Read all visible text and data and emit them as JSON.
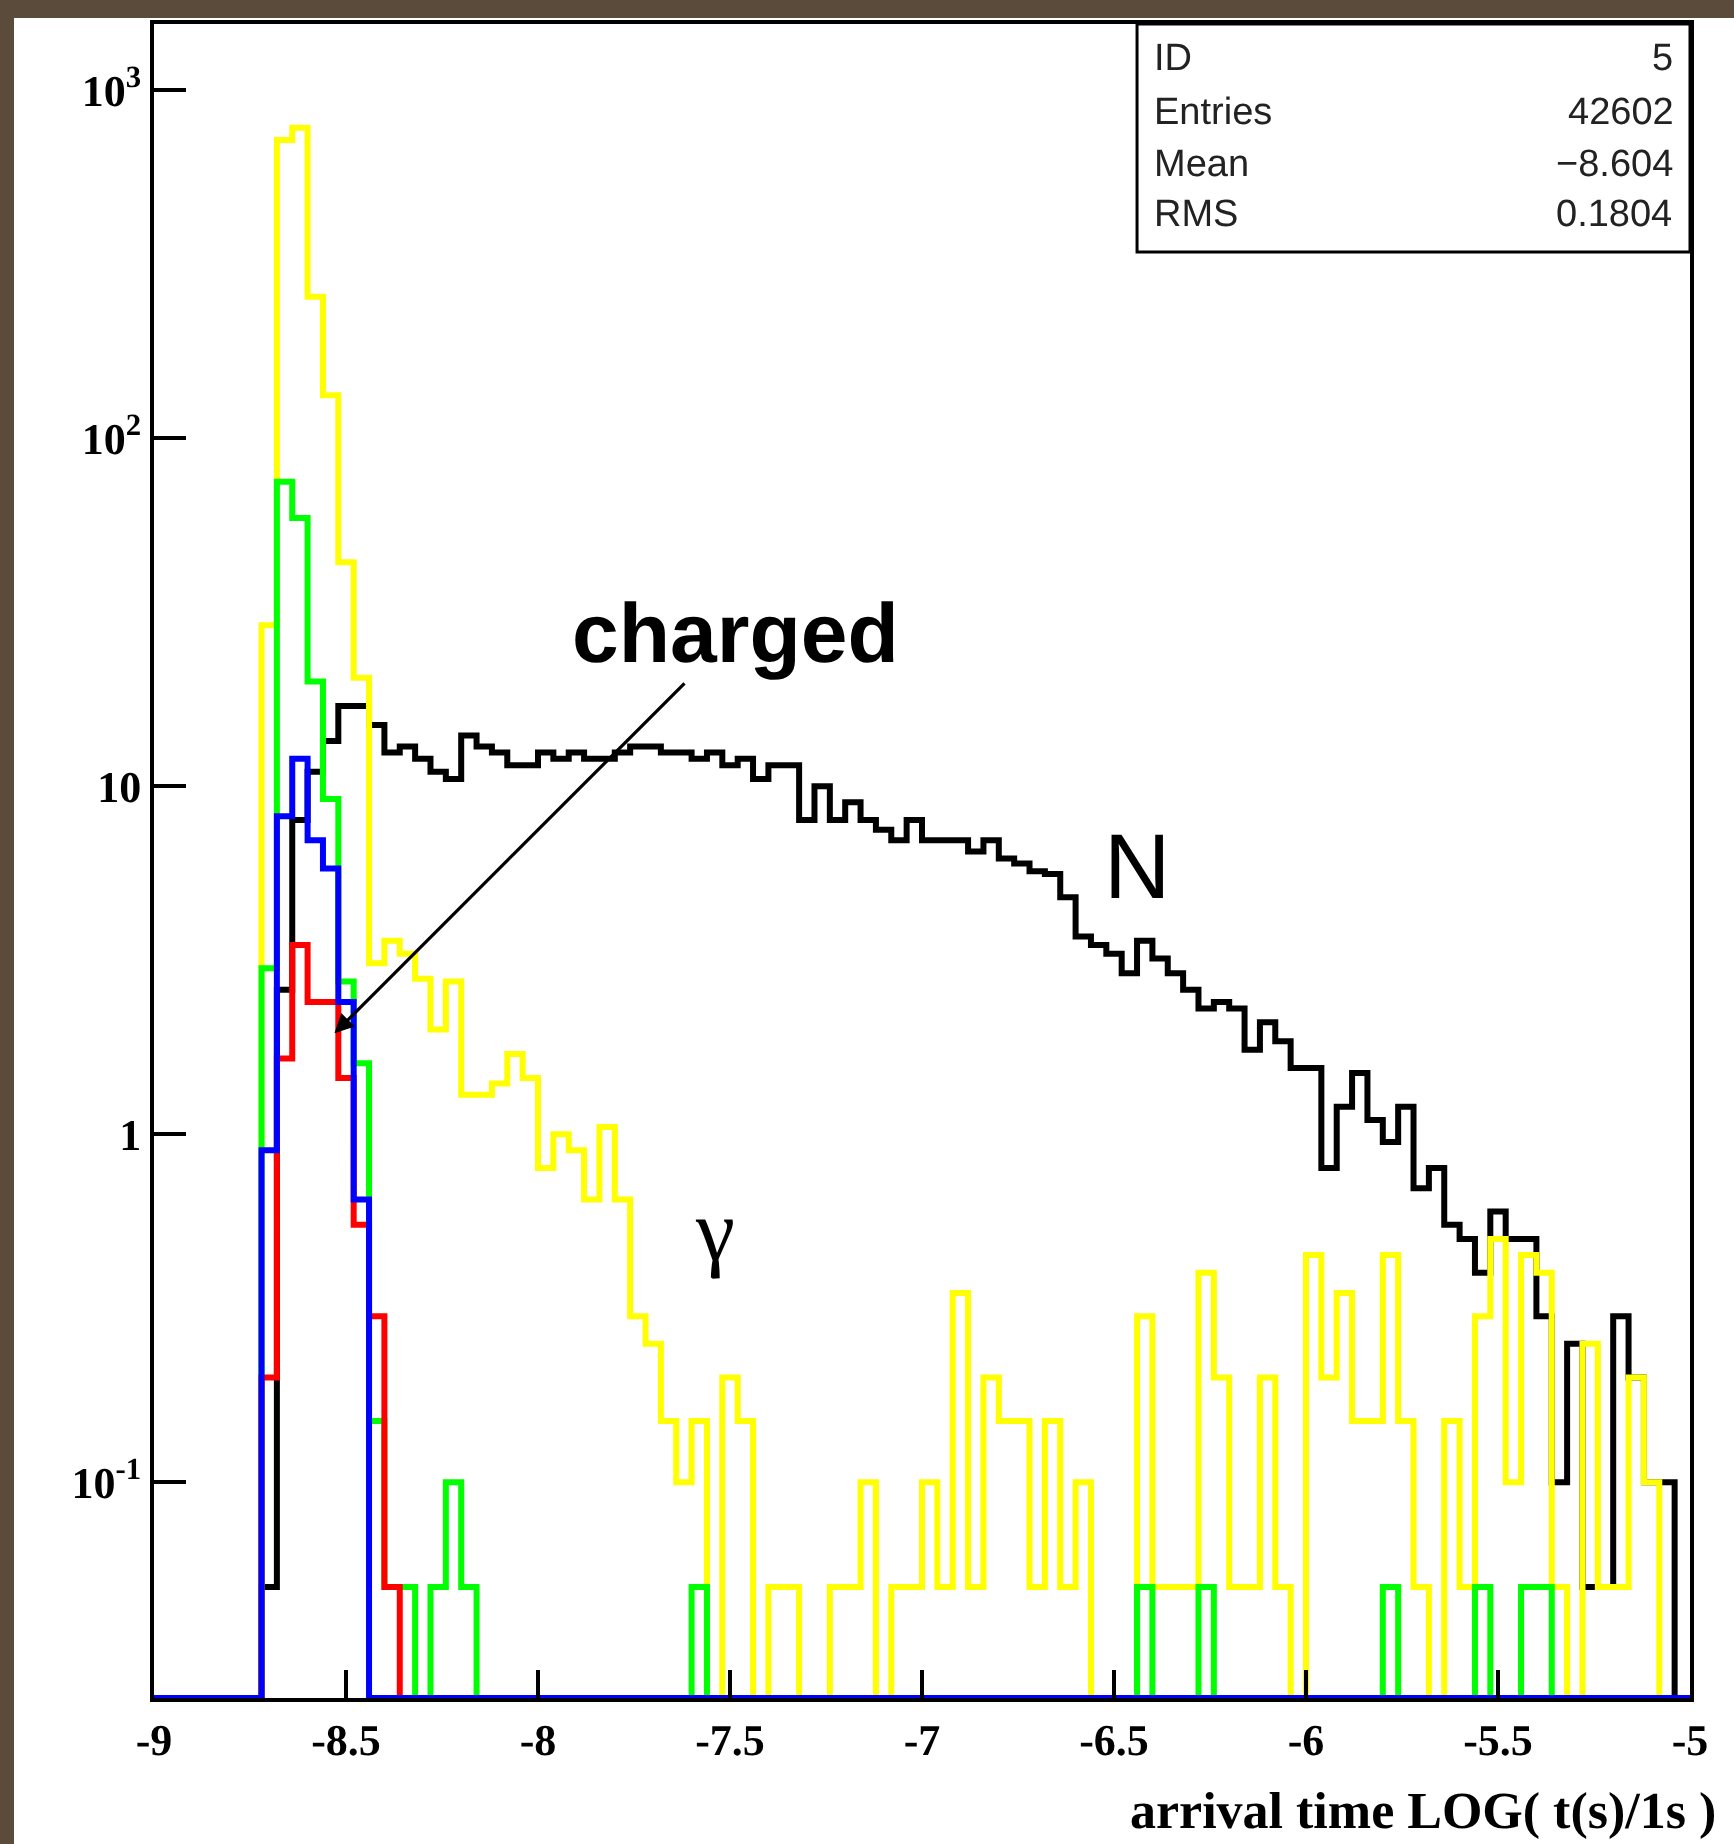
{
  "chart_data": {
    "type": "histogram",
    "xlabel": "arrival time LOG( t(s)/1s )",
    "bins": [
      -9,
      -8.96,
      -8.92,
      -8.88,
      -8.84,
      -8.8,
      -8.76,
      -8.72,
      -8.68,
      -8.64,
      -8.6,
      -8.56,
      -8.52,
      -8.48,
      -8.44,
      -8.4,
      -8.36,
      -8.32,
      -8.28,
      -8.24,
      -8.2,
      -8.16,
      -8.12,
      -8.08,
      -8.04,
      -8,
      -7.96,
      -7.92,
      -7.88,
      -7.84,
      -7.8,
      -7.76,
      -7.72,
      -7.68,
      -7.64,
      -7.6,
      -7.56,
      -7.52,
      -7.48,
      -7.44,
      -7.4,
      -7.36,
      -7.32,
      -7.28,
      -7.24,
      -7.2,
      -7.16,
      -7.12,
      -7.08,
      -7.04,
      -7,
      -6.96,
      -6.92,
      -6.88,
      -6.84,
      -6.8,
      -6.76,
      -6.72,
      -6.68,
      -6.64,
      -6.6,
      -6.56,
      -6.52,
      -6.48,
      -6.44,
      -6.4,
      -6.36,
      -6.32,
      -6.28,
      -6.24,
      -6.2,
      -6.16,
      -6.12,
      -6.08,
      -6.04,
      -6,
      -5.96,
      -5.92,
      -5.88,
      -5.84,
      -5.8,
      -5.76,
      -5.72,
      -5.68,
      -5.64,
      -5.6,
      -5.56,
      -5.52,
      -5.48,
      -5.44,
      -5.4,
      -5.36,
      -5.32,
      -5.28,
      -5.24,
      -5.2,
      -5.16,
      -5.12,
      -5.08,
      -5.04,
      -5
    ],
    "series": [
      {
        "name": "N",
        "color": "#000000",
        "values": [
          null,
          null,
          null,
          null,
          null,
          null,
          null,
          0.05,
          2.6,
          8,
          11,
          13.5,
          17,
          17,
          15,
          12.5,
          13,
          12,
          11,
          10.5,
          14,
          13,
          12.5,
          11.5,
          11.5,
          12.5,
          12,
          12.5,
          12,
          12,
          12.5,
          13,
          13,
          12.5,
          12.5,
          12,
          12.5,
          11.5,
          12,
          10.5,
          11.5,
          11.5,
          8,
          10,
          8,
          9,
          8,
          7.5,
          7,
          8,
          7,
          7,
          7,
          6.5,
          7,
          6.2,
          6,
          5.7,
          5.6,
          4.8,
          3.7,
          3.5,
          3.3,
          2.9,
          3.6,
          3.2,
          2.9,
          2.6,
          2.3,
          2.4,
          2.3,
          1.75,
          2.1,
          1.85,
          1.55,
          1.55,
          0.8,
          1.2,
          1.5,
          1.1,
          0.95,
          1.2,
          0.7,
          0.8,
          0.55,
          0.5,
          0.4,
          0.6,
          0.5,
          0.5,
          0.3,
          0.1,
          0.25,
          0.05,
          0.05,
          0.3,
          0.2,
          0.1,
          0.1,
          null
        ]
      },
      {
        "name": "γ",
        "color": "#ffff00",
        "values": [
          null,
          null,
          null,
          null,
          null,
          null,
          null,
          29,
          720,
          780,
          255,
          133,
          44,
          20.5,
          3.1,
          3.6,
          3.3,
          2.8,
          2,
          2.75,
          1.3,
          1.3,
          1.4,
          1.7,
          1.45,
          0.8,
          1,
          0.9,
          0.65,
          1.05,
          0.65,
          0.3,
          0.25,
          0.15,
          0.1,
          0.15,
          null,
          0.2,
          0.15,
          null,
          0.05,
          0.05,
          null,
          null,
          0.05,
          0.05,
          0.1,
          null,
          0.05,
          0.05,
          0.1,
          0.05,
          0.35,
          0.05,
          0.2,
          0.15,
          0.15,
          0.05,
          0.15,
          0.05,
          0.1,
          null,
          null,
          null,
          0.3,
          0.05,
          0.05,
          0.05,
          0.4,
          0.2,
          0.05,
          0.05,
          0.2,
          0.05,
          null,
          0.45,
          0.2,
          0.35,
          0.15,
          0.15,
          0.45,
          0.15,
          0.05,
          null,
          0.15,
          0.05,
          0.3,
          0.5,
          0.1,
          0.45,
          0.4,
          0.05,
          null,
          0.25,
          0.05,
          0.05,
          0.2,
          0.1,
          null,
          null
        ]
      },
      {
        "color": "#00ff00",
        "values": [
          null,
          null,
          null,
          null,
          null,
          null,
          null,
          3,
          75,
          59,
          20,
          9.2,
          2.75,
          1.6,
          0.15,
          0.05,
          0.05,
          null,
          0.05,
          0.1,
          0.05,
          null,
          null,
          null,
          null,
          null,
          null,
          null,
          null,
          null,
          null,
          null,
          null,
          null,
          null,
          0.05,
          null,
          null,
          null,
          null,
          null,
          null,
          null,
          null,
          null,
          null,
          null,
          null,
          null,
          null,
          null,
          null,
          null,
          null,
          null,
          null,
          null,
          null,
          null,
          null,
          null,
          null,
          null,
          null,
          0.05,
          null,
          null,
          null,
          0.05,
          null,
          null,
          null,
          null,
          null,
          null,
          null,
          null,
          null,
          null,
          null,
          0.05,
          null,
          null,
          null,
          null,
          null,
          0.05,
          null,
          null,
          0.05,
          0.05,
          null,
          null,
          null,
          null,
          null,
          null,
          null,
          null,
          null
        ]
      },
      {
        "color": "#ff0000",
        "values": [
          null,
          null,
          null,
          null,
          null,
          null,
          null,
          0.2,
          1.65,
          3.5,
          2.4,
          2.4,
          1.45,
          0.55,
          0.3,
          0.05,
          null,
          null,
          null,
          null,
          null,
          null,
          null,
          null,
          null,
          null,
          null,
          null,
          null,
          null,
          null,
          null,
          null,
          null,
          null,
          null,
          null,
          null,
          null,
          null,
          null,
          null,
          null,
          null,
          null,
          null,
          null,
          null,
          null,
          null,
          null,
          null,
          null,
          null,
          null,
          null,
          null,
          null,
          null,
          null,
          null,
          null,
          null,
          null,
          null,
          null,
          null,
          null,
          null,
          null,
          null,
          null,
          null,
          null,
          null,
          null,
          null,
          null,
          null,
          null,
          null,
          null,
          null,
          null,
          null,
          null,
          null,
          null,
          null,
          null,
          null,
          null,
          null,
          null,
          null,
          null,
          null,
          null,
          null,
          null
        ]
      },
      {
        "color": "#0000ff",
        "values": [
          null,
          null,
          null,
          null,
          null,
          null,
          null,
          0.9,
          8.2,
          12,
          7,
          5.8,
          2.4,
          0.65,
          null,
          null,
          null,
          null,
          null,
          null,
          null,
          null,
          null,
          null,
          null,
          null,
          null,
          null,
          null,
          null,
          null,
          null,
          null,
          null,
          null,
          null,
          null,
          null,
          null,
          null,
          null,
          null,
          null,
          null,
          null,
          null,
          null,
          null,
          null,
          null,
          null,
          null,
          null,
          null,
          null,
          null,
          null,
          null,
          null,
          null,
          null,
          null,
          null,
          null,
          null,
          null,
          null,
          null,
          null,
          null,
          null,
          null,
          null,
          null,
          null,
          null,
          null,
          null,
          null,
          null,
          null,
          null,
          null,
          null,
          null,
          null,
          null,
          null,
          null,
          null,
          null,
          null,
          null,
          null,
          null,
          null,
          null,
          null,
          null,
          null
        ]
      }
    ],
    "xlim": [
      -9,
      -5
    ],
    "xticks": [
      -9,
      -8.5,
      -8,
      -7.5,
      -7,
      -6.5,
      -6,
      -5.5,
      -5
    ],
    "ylim": [
      0.024,
      1550
    ],
    "yticks": [
      {
        "value": 0.1,
        "label": "10$^{-1}$"
      },
      1,
      10,
      {
        "value": 100,
        "label": "10$^{2}$"
      },
      {
        "value": 1000,
        "label": "10$^{3}$"
      }
    ],
    "log": true,
    "annotations": [
      {
        "text": "charged",
        "x": -8.53,
        "y": 1.95
      },
      "ID",
      "5",
      "Entries",
      "42602",
      "Mean",
      "−8.604",
      "RMS",
      "0.1804"
    ]
  }
}
